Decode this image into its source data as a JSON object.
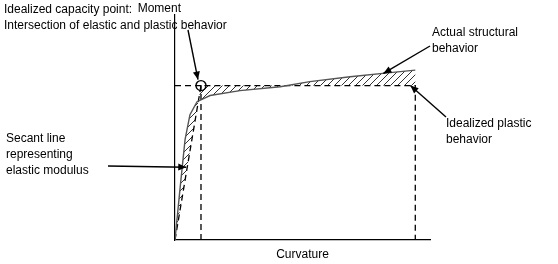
{
  "chart_data": {
    "type": "line",
    "x_label": "Curvature",
    "y_label": "Moment",
    "xlim": [
      0,
      104
    ],
    "ylim": [
      0,
      102
    ],
    "xticks": [],
    "yticks": [],
    "tick_labels": false,
    "grid": false,
    "series": [
      {
        "x": [
          0,
          2,
          4.1,
          6.1,
          9,
          14.3,
          26.5,
          42.9,
          55,
          71.4,
          87.8,
          98
        ],
        "values": [
          0,
          22.7,
          45.5,
          56.8,
          62.7,
          65.5,
          67.7,
          69.5,
          71.8,
          74,
          75.9,
          77
        ],
        "color": "#555555",
        "line_style": "solid"
      },
      {
        "x": [
          0,
          10.6,
          98,
          98
        ],
        "values": [
          0,
          70,
          70,
          0
        ],
        "color": "#000000",
        "line_style": "dashed"
      },
      {
        "x": [
          0,
          10.6,
          10.6,
          10.6,
          10.6
        ],
        "values": [
          70,
          70,
          null,
          0,
          70
        ],
        "color": "#000000",
        "line_style": "dashed"
      }
    ],
    "annotations": [
      {
        "text": [
          "Idealized capacity point:",
          "Intersection of elastic and plastic behavior"
        ],
        "x": 10.6,
        "y": 70
      },
      {
        "text": [
          "Actual structural",
          "behavior"
        ],
        "x": 85,
        "y": 75.5
      },
      {
        "text": [
          "Idealized plastic",
          "behavior"
        ],
        "x": 96,
        "y": 70
      },
      {
        "text": [
          "Secant line",
          "representing",
          "elastic modulus"
        ],
        "x": 5,
        "y": 33
      }
    ]
  }
}
